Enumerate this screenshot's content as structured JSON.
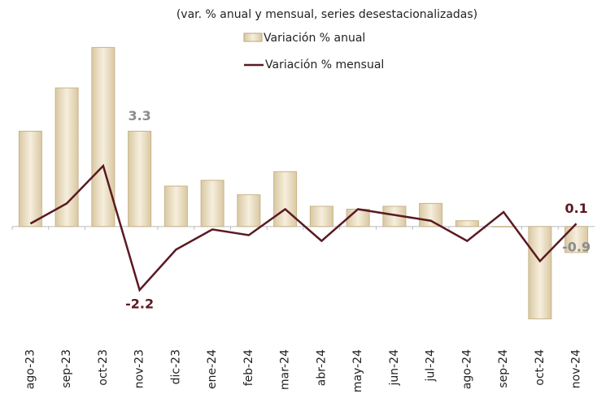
{
  "chart_data": {
    "type": "bar_line",
    "subtitle": "(var. % anual y mensual, series desestacionalizadas)",
    "categories": [
      "ago-23",
      "sep-23",
      "oct-23",
      "nov-23",
      "dic-23",
      "ene-24",
      "feb-24",
      "mar-24",
      "abr-24",
      "may-24",
      "jun-24",
      "jul-24",
      "ago-24",
      "sep-24",
      "oct-24",
      "nov-24"
    ],
    "ylim": [
      -4,
      7
    ],
    "series": [
      {
        "name": "Variación % anual",
        "type": "bar",
        "color": "#c8b48a",
        "values": [
          3.3,
          4.8,
          6.2,
          3.3,
          1.4,
          1.6,
          1.1,
          1.9,
          0.7,
          0.6,
          0.7,
          0.8,
          0.2,
          0.0,
          -3.2,
          -0.9
        ],
        "value_labels": [
          null,
          null,
          null,
          "3.3",
          null,
          null,
          null,
          null,
          null,
          null,
          null,
          null,
          null,
          null,
          null,
          "-0.9"
        ],
        "label_color": "#8c8c8c"
      },
      {
        "name": "Variación % mensual",
        "type": "line",
        "color": "#5a1a22",
        "values": [
          0.1,
          0.8,
          2.1,
          -2.2,
          -0.8,
          -0.1,
          -0.3,
          0.6,
          -0.5,
          0.6,
          0.4,
          0.2,
          -0.5,
          0.5,
          -1.2,
          0.1
        ],
        "value_labels": [
          null,
          null,
          null,
          "-2.2",
          null,
          null,
          null,
          null,
          null,
          null,
          null,
          null,
          null,
          null,
          null,
          "0.1"
        ],
        "label_color": "#5a1a22"
      }
    ]
  }
}
